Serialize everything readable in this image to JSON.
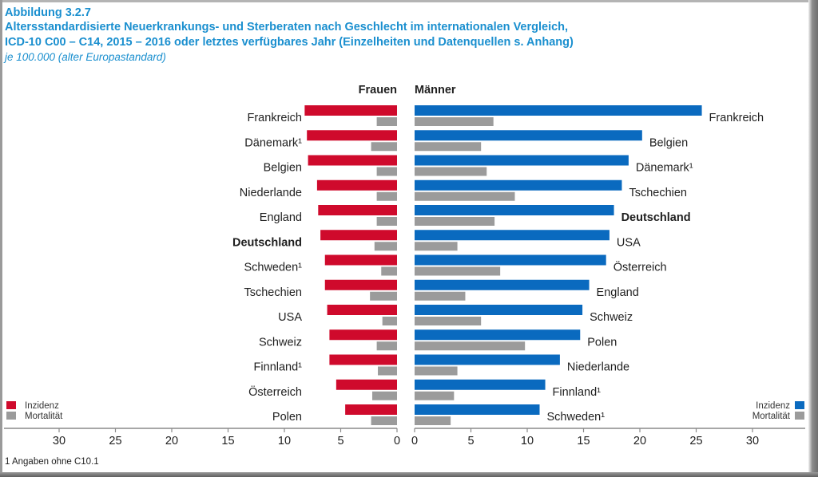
{
  "figure": {
    "number": "Abbildung 3.2.7",
    "title_line1": "Altersstandardisierte Neuerkrankungs- und Sterberaten nach Geschlecht im internationalen Vergleich,",
    "title_line2": "ICD-10 C00 – C14, 2015 – 2016 oder letztes verfügbares Jahr (Einzelheiten und Datenquellen s. Anhang)",
    "unit": "je 100.000 (alter Europastandard)",
    "footnote": "1  Angaben ohne C10.1"
  },
  "colors": {
    "title": "#1a8fcf",
    "women_incidence": "#cf0a2c",
    "men_incidence": "#0a6abf",
    "mortality": "#9b9b9b",
    "axis": "#8a8a8a"
  },
  "chart_data": [
    {
      "type": "bar",
      "orientation": "horizontal",
      "direction": "right-to-left",
      "title": "Frauen",
      "categories": [
        "Frankreich",
        "Dänemark¹",
        "Belgien",
        "Niederlande",
        "England",
        "Deutschland",
        "Schweden¹",
        "Tschechien",
        "USA",
        "Schweiz",
        "Finnland¹",
        "Österreich",
        "Polen"
      ],
      "highlight": "Deutschland",
      "series": [
        {
          "name": "Inzidenz",
          "values": [
            8.2,
            8.0,
            7.9,
            7.1,
            7.0,
            6.8,
            6.4,
            6.4,
            6.2,
            6.0,
            6.0,
            5.4,
            4.6
          ]
        },
        {
          "name": "Mortalität",
          "values": [
            1.8,
            2.3,
            1.8,
            1.8,
            1.8,
            2.0,
            1.4,
            2.4,
            1.3,
            1.8,
            1.7,
            2.2,
            2.3
          ]
        }
      ],
      "xlim": [
        0,
        35
      ],
      "xticks": [
        0,
        5,
        10,
        15,
        20,
        25,
        30
      ],
      "legend": "bottom-left",
      "grid": false
    },
    {
      "type": "bar",
      "orientation": "horizontal",
      "direction": "left-to-right",
      "title": "Männer",
      "categories": [
        "Frankreich",
        "Belgien",
        "Dänemark¹",
        "Tschechien",
        "Deutschland",
        "USA",
        "Österreich",
        "England",
        "Schweiz",
        "Polen",
        "Niederlande",
        "Finnland¹",
        "Schweden¹"
      ],
      "highlight": "Deutschland",
      "series": [
        {
          "name": "Inzidenz",
          "values": [
            25.5,
            20.2,
            19.0,
            18.4,
            17.7,
            17.3,
            17.0,
            15.5,
            14.9,
            14.7,
            12.9,
            11.6,
            11.1
          ]
        },
        {
          "name": "Mortalität",
          "values": [
            7.0,
            5.9,
            6.4,
            8.9,
            7.1,
            3.8,
            7.6,
            4.5,
            5.9,
            9.8,
            3.8,
            3.5,
            3.2
          ]
        }
      ],
      "xlim": [
        0,
        35
      ],
      "xticks": [
        0,
        5,
        10,
        15,
        20,
        25,
        30
      ],
      "legend": "bottom-right",
      "grid": false
    }
  ]
}
